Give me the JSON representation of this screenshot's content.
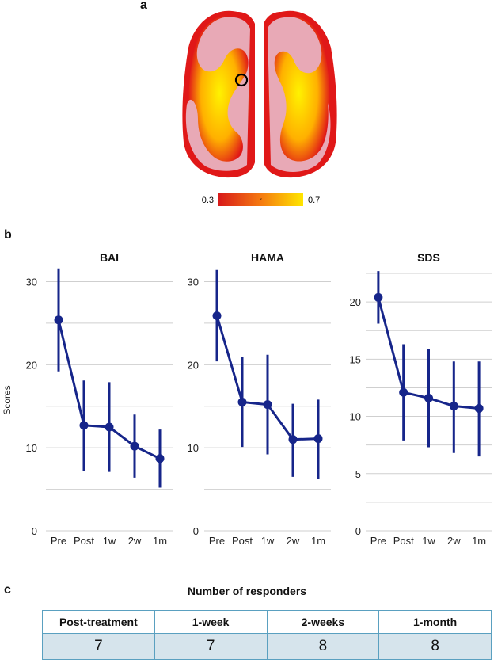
{
  "panel_labels": {
    "a": "a",
    "b": "b",
    "c": "c"
  },
  "colorbar": {
    "min_label": "0.3",
    "mid_label": "r",
    "max_label": "0.7",
    "colors": [
      "#d81a1a",
      "#f57a10",
      "#ffe600"
    ]
  },
  "brain": {
    "surface_color": "#e8a9b6",
    "map_low": "#e01818",
    "map_high": "#fff200"
  },
  "chart_data": [
    {
      "type": "line",
      "title": "BAI",
      "ylabel": "Scores",
      "categories": [
        "Pre",
        "Post",
        "1w",
        "2w",
        "1m"
      ],
      "values": [
        25.4,
        12.7,
        12.5,
        10.2,
        8.7
      ],
      "err_low": [
        19.2,
        7.2,
        7.1,
        6.4,
        5.2
      ],
      "err_high": [
        31.6,
        18.1,
        17.9,
        14.0,
        12.2
      ],
      "ylim": [
        0,
        31
      ],
      "yticks": [
        0,
        10,
        20,
        30
      ],
      "grid_step": 5
    },
    {
      "type": "line",
      "title": "HAMA",
      "ylabel": "",
      "categories": [
        "Pre",
        "Post",
        "1w",
        "2w",
        "1m"
      ],
      "values": [
        25.9,
        15.5,
        15.2,
        11.0,
        11.1
      ],
      "err_low": [
        20.4,
        10.1,
        9.2,
        6.5,
        6.3
      ],
      "err_high": [
        31.4,
        20.9,
        21.2,
        15.3,
        15.8
      ],
      "ylim": [
        0,
        31
      ],
      "yticks": [
        0,
        10,
        20,
        30
      ],
      "grid_step": 5
    },
    {
      "type": "line",
      "title": "SDS",
      "ylabel": "",
      "categories": [
        "Pre",
        "Post",
        "1w",
        "2w",
        "1m"
      ],
      "values": [
        20.4,
        12.1,
        11.6,
        10.9,
        10.7
      ],
      "err_low": [
        18.1,
        7.9,
        7.3,
        6.8,
        6.5
      ],
      "err_high": [
        22.7,
        16.3,
        15.9,
        14.8,
        14.8
      ],
      "ylim": [
        0,
        22.5
      ],
      "yticks": [
        0,
        5,
        10,
        15,
        20
      ],
      "grid_step": 2.5
    }
  ],
  "series_color": "#16258a",
  "responders": {
    "title": "Number of responders",
    "headers": [
      "Post-treatment",
      "1-week",
      "2-weeks",
      "1-month"
    ],
    "values": [
      "7",
      "7",
      "8",
      "8"
    ]
  }
}
